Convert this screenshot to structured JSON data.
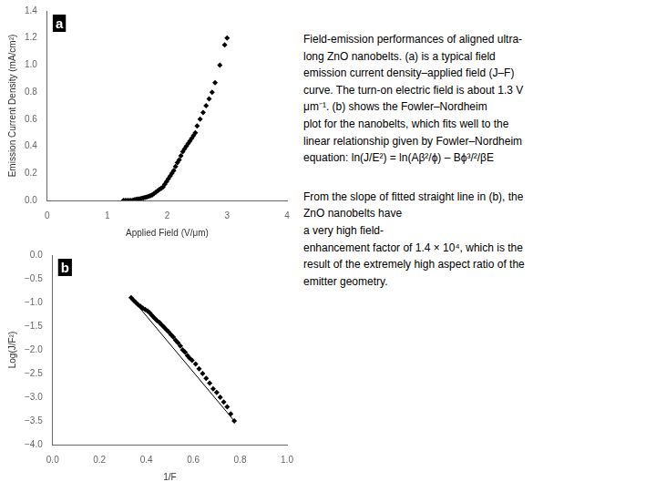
{
  "chart_data": [
    {
      "type": "scatter",
      "title": "a",
      "xlabel": "Applied Field (V/μm)",
      "ylabel": "Emission Current Density (mA/cm²)",
      "series": [
        {
          "x": [
            1.27,
            1.3,
            1.33,
            1.36,
            1.39,
            1.42,
            1.45,
            1.48,
            1.51,
            1.54,
            1.57,
            1.6,
            1.63,
            1.66,
            1.69,
            1.72,
            1.75,
            1.78,
            1.81,
            1.84,
            1.87,
            1.9,
            1.93,
            1.96,
            1.99,
            2.02,
            2.05,
            2.08,
            2.11,
            2.14,
            2.17,
            2.2,
            2.23,
            2.26,
            2.29,
            2.32,
            2.35,
            2.38,
            2.41,
            2.44,
            2.47,
            2.5,
            2.55,
            2.6,
            2.65,
            2.7,
            2.75,
            2.8,
            2.88,
            2.96,
            3.0
          ],
          "values": [
            0.0,
            0.0,
            0.0,
            0.0,
            0.0,
            0.0,
            0.005,
            0.008,
            0.01,
            0.012,
            0.015,
            0.018,
            0.022,
            0.025,
            0.03,
            0.035,
            0.04,
            0.05,
            0.06,
            0.07,
            0.08,
            0.09,
            0.1,
            0.12,
            0.14,
            0.16,
            0.18,
            0.2,
            0.22,
            0.25,
            0.28,
            0.3,
            0.33,
            0.36,
            0.38,
            0.4,
            0.42,
            0.44,
            0.46,
            0.48,
            0.5,
            0.55,
            0.6,
            0.65,
            0.7,
            0.75,
            0.8,
            0.87,
            1.0,
            1.15,
            1.2
          ],
          "color": "#000000",
          "marker": "diamond"
        }
      ],
      "xlim": [
        0,
        4
      ],
      "ylim": [
        0,
        1.4
      ],
      "xticks": [
        0,
        1,
        2,
        3,
        4
      ],
      "yticks": [
        {
          "value": 0,
          "label": "0.0"
        },
        0.2,
        0.4,
        0.6,
        0.8,
        {
          "value": 1.0,
          "label": "1.0"
        },
        1.2,
        1.4
      ],
      "grid": false,
      "annotations": [
        "Field-emission performances of aligned ultra-\nlong ZnO nanobelts. (a) is a typical field\nemission current density–applied field (J–F)\ncurve. The turn-on electric field is about 1.3 V\nμm⁻¹. (b) shows the Fowler–Nordheim\nplot for the nanobelts, which fits well to the\nlinear relationship given by Fowler–Nordheim\nequation: ln(J/E²) = ln(Aβ²/ϕ) – Bϕ³/²/βE",
        "From the slope of fitted straight line in (b), the\nZnO nanobelts have\na very high field-\nenhancement factor of 1.4 × 10⁴, which is the\nresult of the extremely high aspect ratio of the\nemitter geometry."
      ]
    },
    {
      "type": "scatter",
      "title": "b",
      "xlabel": "1/F",
      "ylabel": "Log(J/F²)",
      "series": [
        {
          "x": [
            0.335,
            0.345,
            0.355,
            0.365,
            0.375,
            0.385,
            0.395,
            0.405,
            0.415,
            0.425,
            0.435,
            0.445,
            0.455,
            0.465,
            0.475,
            0.485,
            0.495,
            0.505,
            0.515,
            0.525,
            0.535,
            0.545,
            0.555,
            0.565,
            0.575,
            0.585,
            0.595,
            0.61,
            0.625,
            0.64,
            0.655,
            0.67,
            0.685,
            0.7,
            0.715,
            0.73,
            0.745,
            0.76,
            0.775
          ],
          "values": [
            -0.9,
            -0.95,
            -1.0,
            -1.05,
            -1.08,
            -1.12,
            -1.15,
            -1.18,
            -1.22,
            -1.28,
            -1.33,
            -1.38,
            -1.42,
            -1.47,
            -1.52,
            -1.57,
            -1.62,
            -1.68,
            -1.73,
            -1.8,
            -1.85,
            -1.92,
            -2.0,
            -2.05,
            -2.12,
            -2.18,
            -2.22,
            -2.3,
            -2.4,
            -2.5,
            -2.6,
            -2.7,
            -2.82,
            -2.9,
            -3.0,
            -3.1,
            -3.2,
            -3.35,
            -3.5
          ],
          "color": "#000000",
          "marker": "diamond"
        },
        {
          "type": "line",
          "x": [
            0.335,
            0.775
          ],
          "values": [
            -0.9,
            -3.5
          ],
          "color": "#000000"
        }
      ],
      "xlim": [
        0,
        1
      ],
      "ylim": [
        -4,
        0
      ],
      "xticks": [
        {
          "value": 0,
          "label": "0.0"
        },
        0.2,
        0.4,
        0.6,
        0.8,
        {
          "value": 1.0,
          "label": "1.0"
        }
      ],
      "yticks": [
        {
          "value": 0,
          "label": "0.0"
        },
        {
          "value": -0.5,
          "label": "−0.5"
        },
        {
          "value": -1.0,
          "label": "−1.0"
        },
        {
          "value": -1.5,
          "label": "−1.5"
        },
        {
          "value": -2.0,
          "label": "−2.0"
        },
        {
          "value": -2.5,
          "label": "−2.5"
        },
        {
          "value": -3.0,
          "label": "−3.0"
        },
        {
          "value": -3.5,
          "label": "−3.5"
        },
        {
          "value": -4.0,
          "label": "−4.0"
        }
      ],
      "grid": false
    }
  ]
}
